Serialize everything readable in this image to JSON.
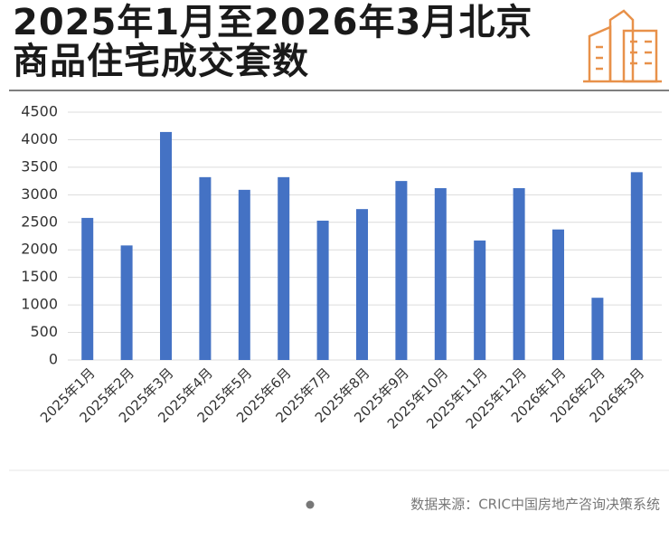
{
  "chart_data": {
    "type": "bar",
    "title": "2025年1月至2026年3月北京商品住宅成交套数",
    "source": "数据来源：CRIC中国房地产咨询决策系统",
    "categories": [
      "2025年1月",
      "2025年2月",
      "2025年3月",
      "2025年4月",
      "2025年5月",
      "2025年6月",
      "2025年7月",
      "2025年8月",
      "2025年9月",
      "2025年10月",
      "2025年11月",
      "2025年12月",
      "2026年1月",
      "2026年2月",
      "2026年3月"
    ],
    "values": [
      2580,
      2080,
      4140,
      3320,
      3090,
      3320,
      2530,
      2740,
      3250,
      3120,
      2170,
      3120,
      2370,
      1130,
      3410
    ],
    "color": "#4472c4",
    "ylim": [
      0,
      4500
    ],
    "yticks": [
      0,
      500,
      1000,
      1500,
      2000,
      2500,
      3000,
      3500,
      4000,
      4500
    ],
    "grid": true
  }
}
